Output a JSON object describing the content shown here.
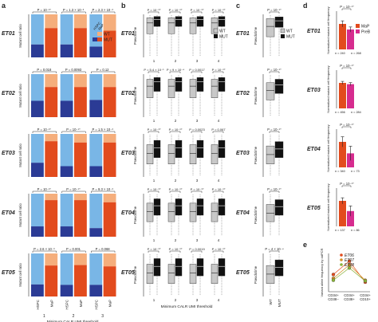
{
  "panels": {
    "a": "a",
    "b": "b",
    "c": "c",
    "d": "d",
    "e": "e"
  },
  "rows": [
    "ET01",
    "ET02",
    "ET03",
    "ET04",
    "ET05"
  ],
  "panel_d_rows": [
    "ET01",
    "ET03",
    "ET04",
    "ET05"
  ],
  "colors": {
    "wt_hspc": "#79b6e6",
    "mut_hspc": "#2b3b95",
    "wt_map": "#f5ae7c",
    "mut_map": "#e24b1d",
    "map": "#e24b1d",
    "preb": "#d62c8f",
    "box_wt": "#c8c8c8",
    "box_mut": "#111111"
  },
  "panel_a": {
    "ylabel": "Mutant cell ratio",
    "xlabel": "Minimum CALR UMI threshold",
    "categories": [
      "HSPC",
      "MaP"
    ],
    "thresholds": [
      "1",
      "2",
      "3"
    ],
    "legend": {
      "hspc": "HSPC",
      "map": "MaP",
      "wt": "WT",
      "mut": "MUT"
    },
    "pvalues": [
      [
        "P = 10⁻¹⁰",
        "P = 1.3 × 10⁻³",
        "P = 2.3 × 10⁻³"
      ],
      [
        "P = 0.018",
        "P = 0.0093",
        "P = 0.12"
      ],
      [
        "P = 10⁻¹⁰",
        "P = 10⁻¹⁰",
        "P = 1.5 × 10⁻³"
      ],
      [
        "P = 10⁻¹⁰",
        "P = 10⁻¹⁰",
        "P = 9.3 × 10⁻³"
      ],
      [
        "P = 2.6 × 10⁻³",
        "P = 0.001",
        "P = 0.068"
      ]
    ],
    "chart_data": {
      "type": "bar",
      "ylim": [
        0,
        1
      ],
      "mutant_ratio": [
        [
          [
            0.3,
            0.68
          ],
          [
            0.3,
            0.68
          ],
          [
            0.25,
            0.62
          ]
        ],
        [
          [
            0.38,
            0.7
          ],
          [
            0.38,
            0.7
          ],
          [
            0.4,
            0.7
          ]
        ],
        [
          [
            0.33,
            0.83
          ],
          [
            0.25,
            0.8
          ],
          [
            0.25,
            0.8
          ]
        ],
        [
          [
            0.24,
            0.85
          ],
          [
            0.24,
            0.85
          ],
          [
            0.2,
            0.8
          ]
        ],
        [
          [
            0.28,
            0.72
          ],
          [
            0.27,
            0.73
          ],
          [
            0.27,
            0.7
          ]
        ]
      ]
    }
  },
  "panel_b": {
    "ylabel": "Pseudotime",
    "xlabel": "Minimum CALR UMI threshold",
    "thresholds": [
      "1",
      "2",
      "3",
      "4"
    ],
    "legend": {
      "wt": "WT",
      "mut": "MUT"
    },
    "pvalues": [
      [
        "P = 10⁻¹⁰",
        "P = 10⁻¹⁰",
        "P = 10⁻¹⁰",
        "P = 10⁻¹⁰"
      ],
      [
        "P = 5.4 × 10⁻¹",
        "P = 9 × 10⁻⁴",
        "P = 0.0017",
        "P = 10⁻¹⁰"
      ],
      [
        "P = 10⁻¹⁰",
        "P = 10⁻¹⁰",
        "P = 0.0023",
        "P = 0.067"
      ],
      [
        "P = 10⁻¹⁰",
        "P = 10⁻¹⁰",
        "P = 10⁻¹⁰",
        "P = 10⁻¹⁰"
      ],
      [
        "P = 10⁻¹⁰",
        "P = 10⁻¹⁰",
        "P = 0.0019",
        "P = 10⁻¹⁰"
      ]
    ],
    "chart_data": {
      "type": "box",
      "ylim": [
        0,
        1
      ],
      "boxes": [
        [
          [
            [
              0.55,
              0.8,
              0.92
            ],
            [
              0.72,
              0.88,
              0.95
            ]
          ],
          [
            [
              0.55,
              0.8,
              0.92
            ],
            [
              0.72,
              0.88,
              0.95
            ]
          ],
          [
            [
              0.55,
              0.8,
              0.92
            ],
            [
              0.72,
              0.88,
              0.95
            ]
          ],
          [
            [
              0.55,
              0.8,
              0.92
            ],
            [
              0.72,
              0.88,
              0.95
            ]
          ]
        ],
        [
          [
            [
              0.45,
              0.72,
              0.88
            ],
            [
              0.6,
              0.82,
              0.92
            ]
          ],
          [
            [
              0.45,
              0.72,
              0.88
            ],
            [
              0.6,
              0.82,
              0.92
            ]
          ],
          [
            [
              0.45,
              0.72,
              0.88
            ],
            [
              0.6,
              0.82,
              0.92
            ]
          ],
          [
            [
              0.45,
              0.72,
              0.88
            ],
            [
              0.6,
              0.82,
              0.92
            ]
          ]
        ],
        [
          [
            [
              0.3,
              0.55,
              0.75
            ],
            [
              0.45,
              0.68,
              0.85
            ]
          ],
          [
            [
              0.3,
              0.55,
              0.75
            ],
            [
              0.45,
              0.68,
              0.85
            ]
          ],
          [
            [
              0.3,
              0.55,
              0.75
            ],
            [
              0.45,
              0.68,
              0.85
            ]
          ],
          [
            [
              0.3,
              0.55,
              0.75
            ],
            [
              0.45,
              0.68,
              0.85
            ]
          ]
        ],
        [
          [
            [
              0.35,
              0.58,
              0.78
            ],
            [
              0.5,
              0.72,
              0.88
            ]
          ],
          [
            [
              0.35,
              0.58,
              0.78
            ],
            [
              0.5,
              0.72,
              0.88
            ]
          ],
          [
            [
              0.35,
              0.58,
              0.78
            ],
            [
              0.5,
              0.72,
              0.88
            ]
          ],
          [
            [
              0.35,
              0.58,
              0.78
            ],
            [
              0.5,
              0.72,
              0.88
            ]
          ]
        ],
        [
          [
            [
              0.3,
              0.55,
              0.75
            ],
            [
              0.48,
              0.7,
              0.88
            ]
          ],
          [
            [
              0.3,
              0.55,
              0.75
            ],
            [
              0.48,
              0.7,
              0.88
            ]
          ],
          [
            [
              0.3,
              0.55,
              0.75
            ],
            [
              0.48,
              0.7,
              0.88
            ]
          ],
          [
            [
              0.3,
              0.55,
              0.75
            ],
            [
              0.48,
              0.7,
              0.88
            ]
          ]
        ]
      ]
    }
  },
  "panel_c": {
    "ylabel": "Pseudotime",
    "categories": [
      "WT",
      "MUT"
    ],
    "legend": {
      "wt": "WT",
      "mut": "MUT"
    },
    "pvalues": [
      "P = 10⁻¹⁰",
      "P = 10⁻¹⁰",
      "P = 10⁻¹⁰",
      "P = 10⁻¹⁰",
      "P = 4 × 10⁻⁴"
    ],
    "chart_data": {
      "type": "box",
      "ylim": [
        0,
        1
      ],
      "boxes": [
        [
          [
            0.48,
            0.72,
            0.9
          ],
          [
            0.7,
            0.85,
            0.94
          ]
        ],
        [
          [
            0.4,
            0.62,
            0.8
          ],
          [
            0.55,
            0.75,
            0.88
          ]
        ],
        [
          [
            0.3,
            0.52,
            0.72
          ],
          [
            0.45,
            0.65,
            0.82
          ]
        ],
        [
          [
            0.35,
            0.55,
            0.75
          ],
          [
            0.5,
            0.7,
            0.86
          ]
        ],
        [
          [
            0.3,
            0.52,
            0.72
          ],
          [
            0.48,
            0.68,
            0.85
          ]
        ]
      ]
    }
  },
  "panel_d": {
    "ylabel": "Normalized mutant cell frequency",
    "legend": {
      "map": "MaP",
      "preb": "PreB"
    },
    "pvalues": [
      "P = 10⁻¹⁰",
      "P = 10⁻¹⁰",
      "P = 10⁻¹⁰",
      "P = 10⁻¹⁰"
    ],
    "ns": [
      "n = 240",
      "n = 456",
      "n = 340",
      "n = 137"
    ],
    "ns_b": [
      "n = 268",
      "n = 284",
      "n = 73",
      "n = 86"
    ],
    "chart_data": {
      "type": "bar",
      "ylim": [
        0,
        1.5
      ],
      "values": [
        [
          1.0,
          0.78
        ],
        [
          1.0,
          0.95
        ],
        [
          1.0,
          0.55
        ],
        [
          1.0,
          0.6
        ]
      ],
      "errors": [
        [
          0.12,
          0.1
        ],
        [
          0.06,
          0.06
        ],
        [
          0.2,
          0.28
        ],
        [
          0.12,
          0.2
        ]
      ]
    }
  },
  "panel_e": {
    "ylabel": "Variant allele frequency by ddPCR",
    "categories": [
      "CD34+\nCD38−",
      "CD34+\nCD38+",
      "CD34+\nCD10+"
    ],
    "legend": [
      "ET06",
      "ET07",
      "ET08"
    ],
    "series_colors": [
      "#e24b1d",
      "#d6902a",
      "#8ab23a"
    ],
    "chart_data": {
      "type": "line",
      "ylim": [
        0,
        1
      ],
      "series": [
        {
          "name": "ET06",
          "values": [
            0.45,
            0.8,
            0.25
          ]
        },
        {
          "name": "ET07",
          "values": [
            0.35,
            0.7,
            0.3
          ]
        },
        {
          "name": "ET08",
          "values": [
            0.3,
            0.62,
            0.28
          ]
        }
      ]
    }
  }
}
